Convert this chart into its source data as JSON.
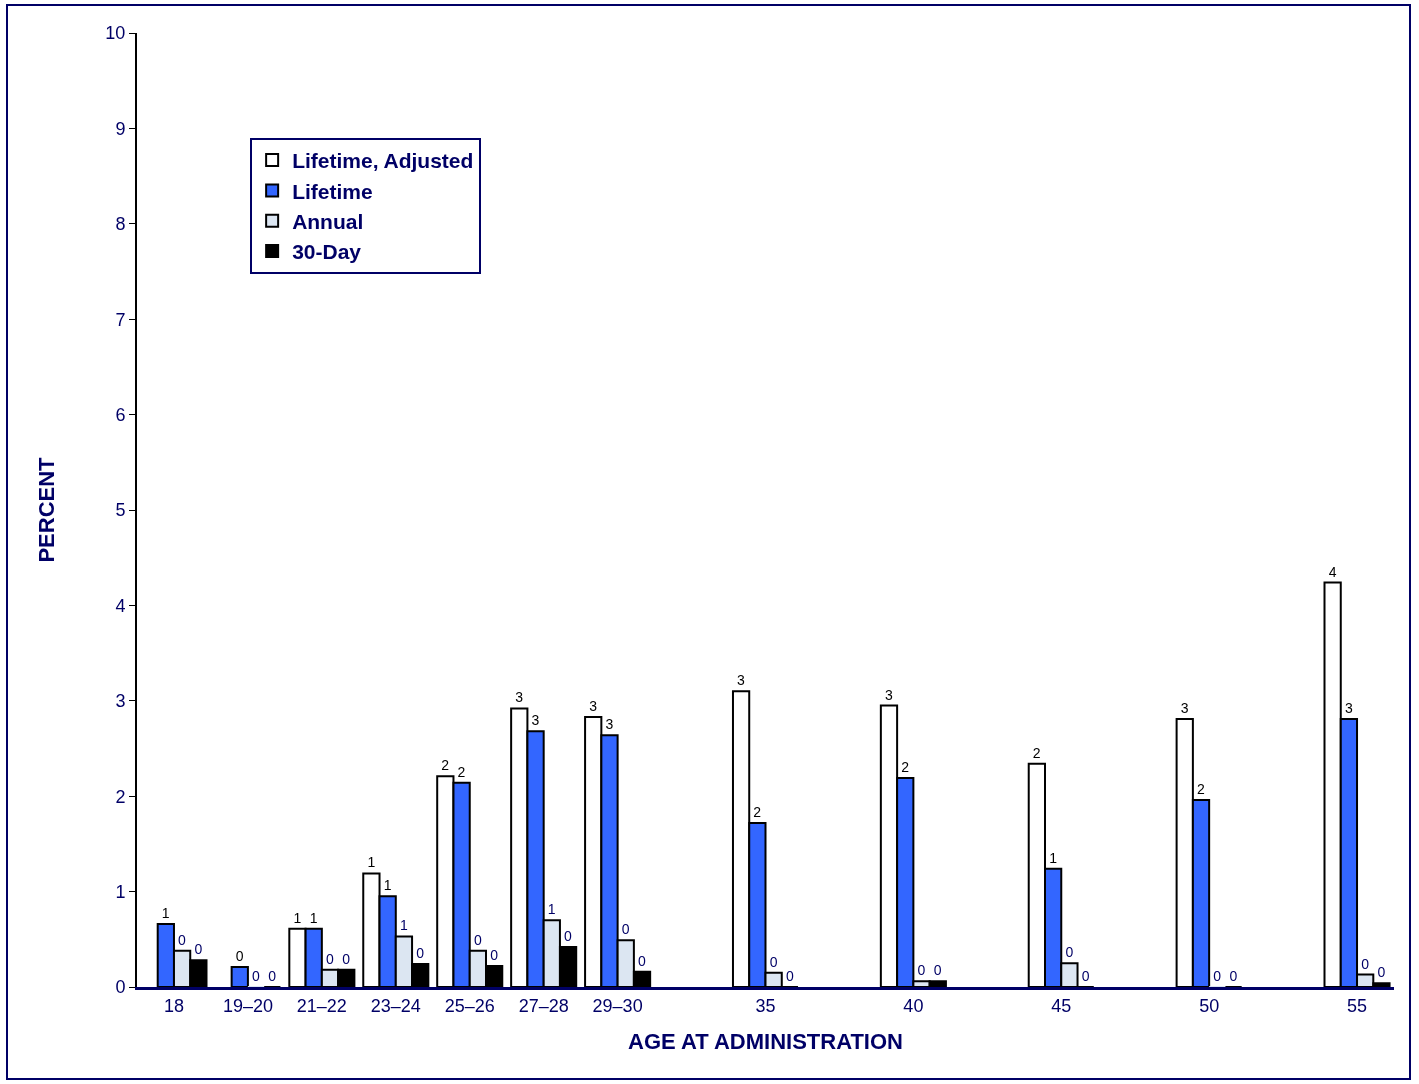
{
  "chart_data": {
    "type": "bar",
    "xlabel": "AGE AT ADMINISTRATION",
    "ylabel": "PERCENT",
    "categories": [
      "18",
      "19–20",
      "21–22",
      "23–24",
      "25–26",
      "27–28",
      "29–30",
      null,
      "35",
      null,
      "40",
      null,
      "45",
      null,
      "50",
      null,
      "55"
    ],
    "series": [
      {
        "name": "Lifetime, Adjusted",
        "color": "#ffffff",
        "values": [
          null,
          null,
          0.61,
          1.19,
          2.21,
          2.92,
          2.83,
          null,
          3.1,
          null,
          2.95,
          null,
          2.34,
          null,
          2.81,
          null,
          4.24
        ],
        "value_labels": [
          null,
          null,
          "1",
          "1",
          "2",
          "3",
          "3",
          null,
          "3",
          null,
          "3",
          null,
          "2",
          null,
          "3",
          null,
          "4"
        ]
      },
      {
        "name": "Lifetime",
        "color": "#3366ff",
        "values": [
          0.66,
          0.21,
          0.61,
          0.95,
          2.14,
          2.68,
          2.64,
          null,
          1.72,
          null,
          2.19,
          null,
          1.24,
          null,
          1.96,
          null,
          2.81
        ],
        "value_labels": [
          "1",
          "0",
          "1",
          "1",
          "2",
          "3",
          "3",
          null,
          "2",
          null,
          "2",
          null,
          "1",
          null,
          "2",
          null,
          "3"
        ]
      },
      {
        "name": "Annual",
        "color": "#dce6f2",
        "values": [
          0.38,
          0,
          0.18,
          0.53,
          0.38,
          0.7,
          0.49,
          null,
          0.15,
          null,
          0.06,
          null,
          0.25,
          null,
          0,
          null,
          0.13
        ],
        "value_labels": [
          "0",
          "0",
          "0",
          "1",
          "0",
          "1",
          "0",
          null,
          "0",
          null,
          "0",
          null,
          "0",
          null,
          "0",
          null,
          "0"
        ]
      },
      {
        "name": "30-Day",
        "color": "#000000",
        "values": [
          0.28,
          0,
          0.18,
          0.24,
          0.22,
          0.42,
          0.16,
          null,
          0,
          null,
          0.06,
          null,
          0,
          null,
          0,
          null,
          0.04
        ],
        "value_labels": [
          "0",
          "0",
          "0",
          "0",
          "0",
          "0",
          "0",
          null,
          "0",
          null,
          "0",
          null,
          "0",
          null,
          "0",
          null,
          "0"
        ]
      }
    ],
    "ylim": [
      0,
      10
    ],
    "yticks": [
      0,
      1,
      2,
      3,
      4,
      5,
      6,
      7,
      8,
      9,
      10
    ],
    "grid": false,
    "legend": "top left"
  }
}
